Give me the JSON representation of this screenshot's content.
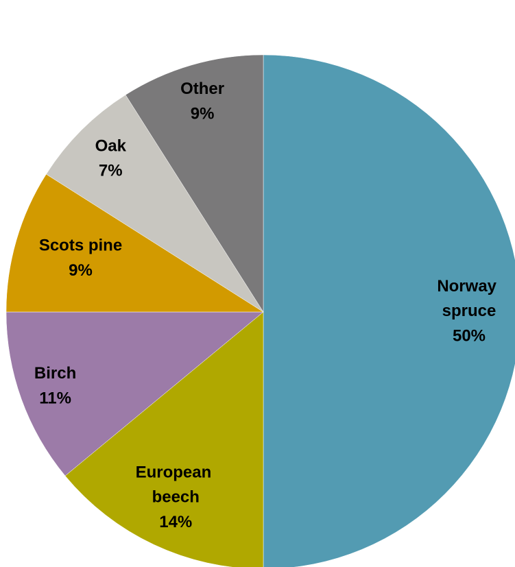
{
  "chart_data": {
    "type": "pie",
    "categories": [
      "Norway spruce",
      "European beech",
      "Birch",
      "Scots pine",
      "Oak",
      "Other"
    ],
    "values": [
      50,
      14,
      11,
      9,
      7,
      9
    ],
    "value_labels": [
      "50%",
      "14%",
      "11%",
      "9%",
      "7%",
      "9%"
    ],
    "colors": [
      "#539bb2",
      "#b0a800",
      "#9c7ba8",
      "#d29a00",
      "#c8c6c0",
      "#7a797a"
    ]
  }
}
